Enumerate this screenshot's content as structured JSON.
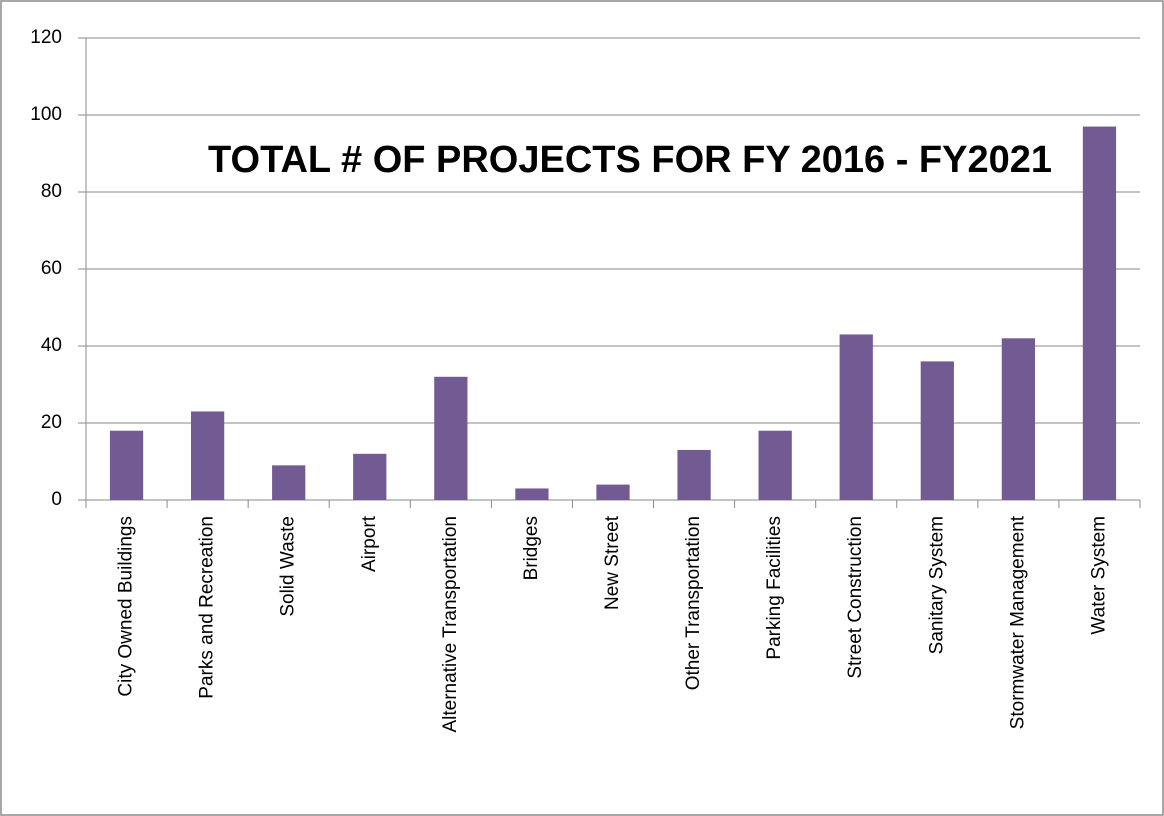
{
  "chart_data": {
    "type": "bar",
    "title": "TOTAL # OF PROJECTS FOR FY 2016 - FY2021",
    "categories": [
      "City Owned Buildings",
      "Parks and Recreation",
      "Solid Waste",
      "Airport",
      "Alternative Transportation",
      "Bridges",
      "New Street",
      "Other Transportation",
      "Parking Facilities",
      "Street Construction",
      "Sanitary System",
      "Stormwater Management",
      "Water System"
    ],
    "values": [
      18,
      23,
      9,
      12,
      32,
      3,
      4,
      13,
      18,
      43,
      36,
      42,
      97
    ],
    "color": "#725a92",
    "ylim": [
      0,
      120
    ],
    "yticks": [
      0,
      20,
      40,
      60,
      80,
      100,
      120
    ],
    "grid": true
  }
}
